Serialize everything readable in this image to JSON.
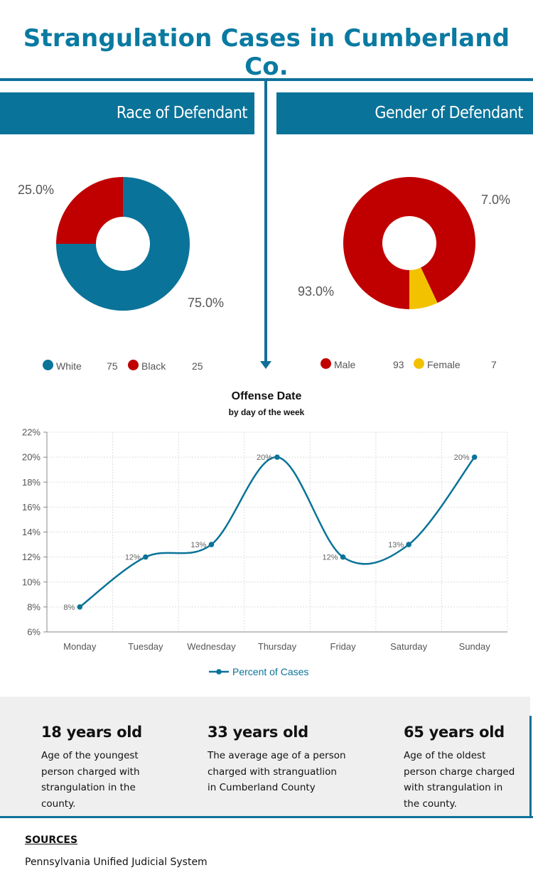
{
  "title": "Strangulation Cases in Cumberland Co.",
  "colors": {
    "accent": "#0a7399",
    "white_series": "#0a7399",
    "black_series": "#c00000",
    "male": "#c00000",
    "female": "#f2c200",
    "line": "#0a7399"
  },
  "race": {
    "banner": "Race of Defendant",
    "slices": [
      {
        "label": "White",
        "value": 75,
        "percent_label": "75.0%",
        "value_label": "75"
      },
      {
        "label": "Black",
        "value": 25,
        "percent_label": "25.0%",
        "value_label": "25"
      }
    ]
  },
  "gender": {
    "banner": "Gender of Defendant",
    "slices": [
      {
        "label": "Male",
        "value": 93,
        "percent_label": "93.0%",
        "value_label": "93"
      },
      {
        "label": "Female",
        "value": 7,
        "percent_label": "7.0%",
        "value_label": "7"
      }
    ]
  },
  "chart_data": [
    {
      "type": "pie",
      "title": "Race of Defendant",
      "categories": [
        "White",
        "Black"
      ],
      "values": [
        75,
        25
      ],
      "legend": "bottom"
    },
    {
      "type": "pie",
      "title": "Gender of Defendant",
      "categories": [
        "Male",
        "Female"
      ],
      "values": [
        93,
        7
      ],
      "legend": "bottom"
    },
    {
      "type": "line",
      "title": "Offense Date",
      "subtitle": "by day of the week",
      "categories": [
        "Monday",
        "Tuesday",
        "Wednesday",
        "Thursday",
        "Friday",
        "Saturday",
        "Sunday"
      ],
      "series": [
        {
          "name": "Percent of Cases",
          "values": [
            8,
            12,
            13,
            20,
            12,
            13,
            20
          ],
          "data_labels": [
            "8%",
            "12%",
            "13%",
            "20%",
            "12%",
            "13%",
            "20%"
          ]
        }
      ],
      "ylim": [
        6,
        22
      ],
      "yticks": [
        6,
        8,
        10,
        12,
        14,
        16,
        18,
        20,
        22
      ],
      "ytick_labels": [
        "6%",
        "8%",
        "10%",
        "12%",
        "14%",
        "16%",
        "18%",
        "20%",
        "22%"
      ],
      "grid": true,
      "legend": "bottom"
    }
  ],
  "facts": [
    {
      "heading": "18 years old",
      "text": "Age of the youngest person charged with strangulation in the county."
    },
    {
      "heading": "33 years old",
      "text": "The average age of a person charged with stranguatlion in Cumberland County"
    },
    {
      "heading": "65 years old",
      "text": "Age of the oldest person charge charged with strangulation in the county."
    }
  ],
  "sources": {
    "heading": "SOURCES",
    "text": "Pennsylvania Unified Judicial System"
  }
}
